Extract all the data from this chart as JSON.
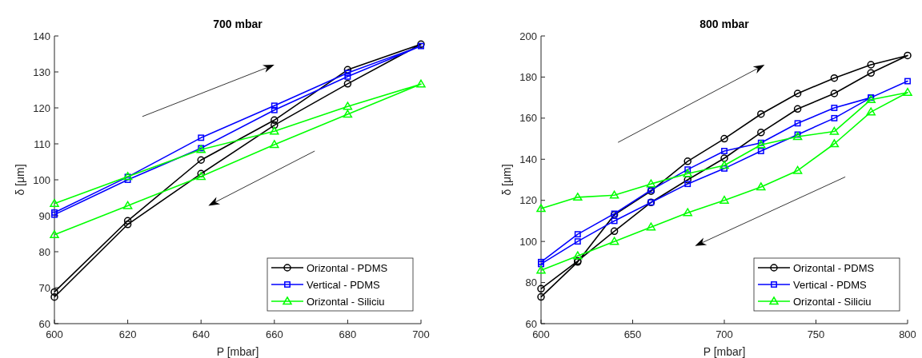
{
  "chart_data": [
    {
      "type": "line",
      "title": "700 mbar",
      "xlabel": "P [mbar]",
      "ylabel": "δ [μm]",
      "xlim": [
        600,
        700
      ],
      "xticks": [
        600,
        620,
        640,
        660,
        680,
        700
      ],
      "ylim": [
        60,
        140
      ],
      "yticks": [
        60,
        70,
        80,
        90,
        100,
        110,
        120,
        130,
        140
      ],
      "legend": "bottom right",
      "grid": false,
      "series": [
        {
          "name": "Orizontal - PDMS",
          "color": "#000000",
          "marker": "circle",
          "x": [
            600,
            620,
            640,
            660,
            680,
            700,
            680,
            660,
            640,
            620,
            600
          ],
          "values": [
            68.8,
            88.6,
            105.5,
            116.6,
            130.6,
            137.7,
            126.7,
            115.2,
            101.7,
            87.6,
            67.4
          ]
        },
        {
          "name": "Vertical - PDMS",
          "color": "#0000ff",
          "marker": "square",
          "x": [
            600,
            620,
            640,
            660,
            680,
            700,
            680,
            660,
            640,
            620,
            600
          ],
          "values": [
            90.9,
            100.8,
            111.7,
            120.6,
            129.7,
            137.2,
            128.7,
            119.4,
            108.8,
            100,
            90.3
          ]
        },
        {
          "name": "Orizontal - Siliciu",
          "color": "#00ff00",
          "marker": "triangle",
          "x": [
            600,
            620,
            640,
            660,
            680,
            700,
            680,
            660,
            640,
            620,
            600
          ],
          "values": [
            93.4,
            100.9,
            108.4,
            113.5,
            120.4,
            126.6,
            118.2,
            109.8,
            100.9,
            92.8,
            84.7
          ]
        }
      ]
    },
    {
      "type": "line",
      "title": "800 mbar",
      "xlabel": "P [mbar]",
      "ylabel": "δ [μm]",
      "xlim": [
        600,
        800
      ],
      "xticks": [
        600,
        650,
        700,
        750,
        800
      ],
      "ylim": [
        60,
        200
      ],
      "yticks": [
        60,
        80,
        100,
        120,
        140,
        160,
        180,
        200
      ],
      "legend": "bottom right",
      "grid": false,
      "series": [
        {
          "name": "Orizontal - PDMS",
          "color": "#000000",
          "marker": "circle",
          "x": [
            600,
            620,
            640,
            660,
            680,
            700,
            720,
            740,
            760,
            780,
            800,
            780,
            760,
            740,
            720,
            700,
            680,
            660,
            640,
            620,
            600
          ],
          "values": [
            73,
            90,
            113,
            124.5,
            139,
            150,
            162,
            172,
            179.5,
            186,
            190.5,
            182,
            172,
            164.5,
            153,
            140.5,
            130,
            119,
            105,
            90.5,
            77
          ]
        },
        {
          "name": "Vertical - PDMS",
          "color": "#0000ff",
          "marker": "square",
          "x": [
            600,
            620,
            640,
            660,
            680,
            700,
            720,
            740,
            760,
            780,
            800,
            780,
            760,
            740,
            720,
            700,
            680,
            660,
            640,
            620,
            600
          ],
          "values": [
            90,
            103.5,
            113.5,
            125,
            135,
            144,
            148,
            157.5,
            165,
            170,
            178,
            170,
            160,
            152,
            144,
            135.5,
            128,
            119,
            110,
            100,
            89
          ]
        },
        {
          "name": "Orizontal - Siliciu",
          "color": "#00ff00",
          "marker": "triangle",
          "x": [
            600,
            620,
            640,
            660,
            680,
            700,
            720,
            740,
            760,
            780,
            800,
            780,
            760,
            740,
            720,
            700,
            680,
            660,
            640,
            620,
            600
          ],
          "values": [
            116,
            121.5,
            122.5,
            128,
            133,
            137,
            147,
            151,
            153.5,
            169,
            172.5,
            163,
            147.5,
            134.5,
            126.5,
            120,
            114,
            107,
            100,
            93,
            86
          ]
        }
      ]
    }
  ]
}
